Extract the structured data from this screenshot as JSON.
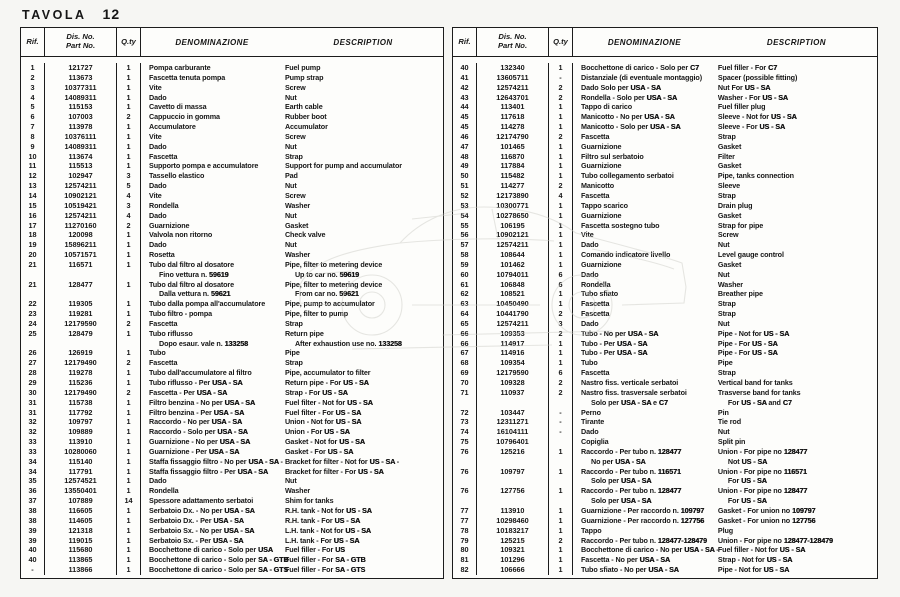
{
  "colors": {
    "paper": "#f6f6f3",
    "ink": "#161616"
  },
  "page": {
    "title": "TAVOLA",
    "number": "12"
  },
  "tables": {
    "columns": {
      "rif": "Rif.",
      "dis_no": "Dis. No.",
      "part_no": "Part No.",
      "qty": "Q.ty",
      "denominazione": "DENOMINAZIONE",
      "description": "DESCRIPTION"
    },
    "left": {
      "rows": [
        {
          "rif": "1",
          "part": "121727",
          "qty": "1",
          "den": "Pompa carburante",
          "desc": "Fuel pump"
        },
        {
          "rif": "2",
          "part": "113673",
          "qty": "1",
          "den": "Fascetta tenuta pompa",
          "desc": "Pump strap"
        },
        {
          "rif": "3",
          "part": "10377311",
          "qty": "1",
          "den": "Vite",
          "desc": "Screw"
        },
        {
          "rif": "4",
          "part": "14089311",
          "qty": "1",
          "den": "Dado",
          "desc": "Nut"
        },
        {
          "rif": "5",
          "part": "115153",
          "qty": "1",
          "den": "Cavetto di massa",
          "desc": "Earth cable"
        },
        {
          "rif": "6",
          "part": "107003",
          "qty": "2",
          "den": "Cappuccio in gomma",
          "desc": "Rubber boot"
        },
        {
          "rif": "7",
          "part": "113978",
          "qty": "1",
          "den": "Accumulatore",
          "desc": "Accumulator"
        },
        {
          "rif": "8",
          "part": "10376111",
          "qty": "1",
          "den": "Vite",
          "desc": "Screw"
        },
        {
          "rif": "9",
          "part": "14089311",
          "qty": "1",
          "den": "Dado",
          "desc": "Nut"
        },
        {
          "rif": "10",
          "part": "113674",
          "qty": "1",
          "den": "Fascetta",
          "desc": "Strap"
        },
        {
          "rif": "11",
          "part": "115513",
          "qty": "1",
          "den": "Supporto pompa e accumulatore",
          "desc": "Support for pump and accumulator"
        },
        {
          "rif": "12",
          "part": "102947",
          "qty": "3",
          "den": "Tassello elastico",
          "desc": "Pad"
        },
        {
          "rif": "13",
          "part": "12574211",
          "qty": "5",
          "den": "Dado",
          "desc": "Nut"
        },
        {
          "rif": "14",
          "part": "10902121",
          "qty": "4",
          "den": "Vite",
          "desc": "Screw"
        },
        {
          "rif": "15",
          "part": "10519421",
          "qty": "3",
          "den": "Rondella",
          "desc": "Washer"
        },
        {
          "rif": "16",
          "part": "12574211",
          "qty": "4",
          "den": "Dado",
          "desc": "Nut"
        },
        {
          "rif": "17",
          "part": "11270160",
          "qty": "2",
          "den": "Guarnizione",
          "desc": "Gasket"
        },
        {
          "rif": "18",
          "part": "120098",
          "qty": "1",
          "den": "Valvola non ritorno",
          "desc": "Check valve"
        },
        {
          "rif": "19",
          "part": "15896211",
          "qty": "1",
          "den": "Dado",
          "desc": "Nut"
        },
        {
          "rif": "20",
          "part": "10571571",
          "qty": "1",
          "den": "Rosetta",
          "desc": "Washer"
        },
        {
          "rif": "21",
          "part": "116571",
          "qty": "1",
          "den": "Tubo dal filtro al dosatore",
          "desc": "Pipe, filter to metering device"
        },
        {
          "cont": true,
          "den": "Fino vettura n. **59619**",
          "desc": "Up to car no. **59619**"
        },
        {
          "rif": "21",
          "part": "128477",
          "qty": "1",
          "den": "Tubo dal filtro al dosatore",
          "desc": "Pipe, filter to metering device"
        },
        {
          "cont": true,
          "den": "Dalla vettura n. **59621**",
          "desc": "From car no. **59621**"
        },
        {
          "rif": "22",
          "part": "119305",
          "qty": "1",
          "den": "Tubo dalla pompa all'accumulatore",
          "desc": "Pipe, pump to accumulator"
        },
        {
          "rif": "23",
          "part": "119281",
          "qty": "1",
          "den": "Tubo filtro - pompa",
          "desc": "Pipe, filter to pump"
        },
        {
          "rif": "24",
          "part": "12179590",
          "qty": "2",
          "den": "Fascetta",
          "desc": "Strap"
        },
        {
          "rif": "25",
          "part": "128479",
          "qty": "1",
          "den": "Tubo riflusso",
          "desc": "Return pipe"
        },
        {
          "cont": true,
          "den": "Dopo esaur. vale n. **133258**",
          "desc": "After exhaustion use no. **133258**"
        },
        {
          "rif": "26",
          "part": "126919",
          "qty": "1",
          "den": "Tubo",
          "desc": "Pipe"
        },
        {
          "rif": "27",
          "part": "12179490",
          "qty": "2",
          "den": "Fascetta",
          "desc": "Strap"
        },
        {
          "rif": "28",
          "part": "119278",
          "qty": "1",
          "den": "Tubo dall'accumulatore al filtro",
          "desc": "Pipe, accumulator to filter"
        },
        {
          "rif": "29",
          "part": "115236",
          "qty": "1",
          "den": "Tubo riflusso - Per **USA - SA**",
          "desc": "Return pipe - For **US - SA**"
        },
        {
          "rif": "30",
          "part": "12179490",
          "qty": "2",
          "den": "Fascetta - Per **USA - SA**",
          "desc": "Strap - For **US - SA**"
        },
        {
          "rif": "31",
          "part": "115738",
          "qty": "1",
          "den": "Filtro benzina - No per **USA - SA**",
          "desc": "Fuel filter - Not for **US - SA**"
        },
        {
          "rif": "31",
          "part": "117792",
          "qty": "1",
          "den": "Filtro benzina - Per **USA - SA**",
          "desc": "Fuel filter - For **US - SA**"
        },
        {
          "rif": "32",
          "part": "109797",
          "qty": "1",
          "den": "Raccordo - No per **USA - SA**",
          "desc": "Union - Not for **US - SA**"
        },
        {
          "rif": "32",
          "part": "109889",
          "qty": "1",
          "den": "Raccordo - Solo per **USA - SA**",
          "desc": "Union - For **US - SA**"
        },
        {
          "rif": "33",
          "part": "113910",
          "qty": "1",
          "den": "Guarnizione - No per **USA - SA**",
          "desc": "Gasket - Not for **US - SA**"
        },
        {
          "rif": "33",
          "part": "10280060",
          "qty": "1",
          "den": "Guarnizione - Per **USA - SA**",
          "desc": "Gasket - For **US - SA**"
        },
        {
          "rif": "34",
          "part": "115140",
          "qty": "1",
          "den": "Staffa fissaggio filtro - No per **USA - SA** -",
          "desc": "Bracket for filter - Not for **US - SA** -"
        },
        {
          "rif": "34",
          "part": "117791",
          "qty": "1",
          "den": "Staffa fissaggio filtro - Per **USA - SA**",
          "desc": "Bracket for filter - For **US - SA**"
        },
        {
          "rif": "35",
          "part": "12574521",
          "qty": "1",
          "den": "Dado",
          "desc": "Nut"
        },
        {
          "rif": "36",
          "part": "13550401",
          "qty": "1",
          "den": "Rondella",
          "desc": "Washer"
        },
        {
          "rif": "37",
          "part": "107889",
          "qty": "14",
          "den": "Spessore adattamento serbatoi",
          "desc": "Shim for tanks"
        },
        {
          "rif": "38",
          "part": "116605",
          "qty": "1",
          "den": "Serbatoio Dx. - No per **USA - SA**",
          "desc": "R.H. tank - Not for **US - SA**"
        },
        {
          "rif": "38",
          "part": "114605",
          "qty": "1",
          "den": "Serbatoio Dx. - Per **USA - SA**",
          "desc": "R.H. tank - For **US - SA**"
        },
        {
          "rif": "39",
          "part": "121318",
          "qty": "1",
          "den": "Serbatoio Sx. - No per **USA - SA**",
          "desc": "L.H. tank - Not for **US - SA**"
        },
        {
          "rif": "39",
          "part": "119015",
          "qty": "1",
          "den": "Serbatoio Sx. - Per **USA - SA**",
          "desc": "L.H. tank - For **US - SA**"
        },
        {
          "rif": "40",
          "part": "115680",
          "qty": "1",
          "den": "Bocchettone di carico - Solo per **USA**",
          "desc": "Fuel filler - For **US**"
        },
        {
          "rif": "40",
          "part": "113865",
          "qty": "1",
          "den": "Bocchettone di carico - Solo per **SA - GTB**",
          "desc": "Fuel filler - For **SA - GTB**"
        },
        {
          "rif": "-",
          "part": "113866",
          "qty": "1",
          "den": "Bocchettone di carico - Solo per **SA - GTS**",
          "desc": "Fuel filler - For **SA - GTS**"
        }
      ]
    },
    "right": {
      "rows": [
        {
          "rif": "40",
          "part": "132340",
          "qty": "1",
          "den": "Bocchettone di carico - Solo per **C7**",
          "desc": "Fuel filler - For **C7**"
        },
        {
          "rif": "41",
          "part": "13605711",
          "qty": "-",
          "den": "Distanziale (di eventuale montaggio)",
          "desc": "Spacer (possible fitting)"
        },
        {
          "rif": "42",
          "part": "12574211",
          "qty": "2",
          "den": "Dado  Solo per **USA - SA**",
          "desc": "Nut  For **US - SA**"
        },
        {
          "rif": "43",
          "part": "12643701",
          "qty": "2",
          "den": "Rondella - Solo per **USA - SA**",
          "desc": "Washer - For **US - SA**"
        },
        {
          "rif": "44",
          "part": "113401",
          "qty": "1",
          "den": "Tappo di carico",
          "desc": "Fuel filler plug"
        },
        {
          "rif": "45",
          "part": "117618",
          "qty": "1",
          "den": "Manicotto - No per **USA - SA**",
          "desc": "Sleeve - Not for **US - SA**"
        },
        {
          "rif": "45",
          "part": "114278",
          "qty": "1",
          "den": "Manicotto - Solo per **USA - SA**",
          "desc": "Sleeve - For **US - SA**"
        },
        {
          "rif": "46",
          "part": "12174790",
          "qty": "2",
          "den": "Fascetta",
          "desc": "Strap"
        },
        {
          "rif": "47",
          "part": "101465",
          "qty": "1",
          "den": "Guarnizione",
          "desc": "Gasket"
        },
        {
          "rif": "48",
          "part": "116870",
          "qty": "1",
          "den": "Filtro sul serbatoio",
          "desc": "Filter"
        },
        {
          "rif": "49",
          "part": "117884",
          "qty": "1",
          "den": "Guarnizione",
          "desc": "Gasket"
        },
        {
          "rif": "50",
          "part": "115482",
          "qty": "1",
          "den": "Tubo collegamento serbatoi",
          "desc": "Pipe, tanks connection"
        },
        {
          "rif": "51",
          "part": "114277",
          "qty": "2",
          "den": "Manicotto",
          "desc": "Sleeve"
        },
        {
          "rif": "52",
          "part": "12173890",
          "qty": "4",
          "den": "Fascetta",
          "desc": "Strap"
        },
        {
          "rif": "53",
          "part": "10300771",
          "qty": "1",
          "den": "Tappo scarico",
          "desc": "Drain plug"
        },
        {
          "rif": "54",
          "part": "10278650",
          "qty": "1",
          "den": "Guarnizione",
          "desc": "Gasket"
        },
        {
          "rif": "55",
          "part": "106195",
          "qty": "1",
          "den": "Fascetta sostegno tubo",
          "desc": "Strap for pipe"
        },
        {
          "rif": "56",
          "part": "10902121",
          "qty": "1",
          "den": "Vite",
          "desc": "Screw"
        },
        {
          "rif": "57",
          "part": "12574211",
          "qty": "1",
          "den": "Dado",
          "desc": "Nut"
        },
        {
          "rif": "58",
          "part": "108644",
          "qty": "1",
          "den": "Comando indicatore livello",
          "desc": "Level gauge control"
        },
        {
          "rif": "59",
          "part": "101462",
          "qty": "1",
          "den": "Guarnizione",
          "desc": "Gasket"
        },
        {
          "rif": "60",
          "part": "10794011",
          "qty": "6",
          "den": "Dado",
          "desc": "Nut"
        },
        {
          "rif": "61",
          "part": "106848",
          "qty": "6",
          "den": "Rondella",
          "desc": "Washer"
        },
        {
          "rif": "62",
          "part": "108521",
          "qty": "1",
          "den": "Tubo sfiato",
          "desc": "Breather pipe"
        },
        {
          "rif": "63",
          "part": "10450490",
          "qty": "1",
          "den": "Fascetta",
          "desc": "Strap"
        },
        {
          "rif": "64",
          "part": "10441790",
          "qty": "2",
          "den": "Fascetta",
          "desc": "Strap"
        },
        {
          "rif": "65",
          "part": "12574211",
          "qty": "3",
          "den": "Dado",
          "desc": "Nut"
        },
        {
          "rif": "66",
          "part": "109353",
          "qty": "2",
          "den": "Tubo - No per **USA - SA**",
          "desc": "Pipe - Not for **US - SA**"
        },
        {
          "rif": "66",
          "part": "114917",
          "qty": "1",
          "den": "Tubo - Per **USA - SA**",
          "desc": "Pipe - For **US - SA**"
        },
        {
          "rif": "67",
          "part": "114916",
          "qty": "1",
          "den": "Tubo - Per **USA - SA**",
          "desc": "Pipe - For **US - SA**"
        },
        {
          "rif": "68",
          "part": "109354",
          "qty": "1",
          "den": "Tubo",
          "desc": "Pipe"
        },
        {
          "rif": "69",
          "part": "12179590",
          "qty": "6",
          "den": "Fascetta",
          "desc": "Strap"
        },
        {
          "rif": "70",
          "part": "109328",
          "qty": "2",
          "den": "Nastro fiss. verticale serbatoi",
          "desc": "Vertical band for tanks"
        },
        {
          "rif": "71",
          "part": "110937",
          "qty": "2",
          "den": "Nastro fiss. trasversale serbatoi",
          "desc": "Trasverse band for tanks"
        },
        {
          "cont": true,
          "den": "Solo per **USA - SA** e **C7**",
          "desc": "For **US - SA** and **C7**"
        },
        {
          "rif": "72",
          "part": "103447",
          "qty": "-",
          "den": "Perno",
          "desc": "Pin"
        },
        {
          "rif": "73",
          "part": "12311271",
          "qty": "-",
          "den": "Tirante",
          "desc": "Tie rod"
        },
        {
          "rif": "74",
          "part": "16104111",
          "qty": "-",
          "den": "Dado",
          "desc": "Nut"
        },
        {
          "rif": "75",
          "part": "10796401",
          "qty": "",
          "den": "Copiglia",
          "desc": "Split pin"
        },
        {
          "rif": "76",
          "part": "125216",
          "qty": "1",
          "den": "Raccordo - Per tubo n. **128477**",
          "desc": "Union - For pipe no **128477**"
        },
        {
          "cont": true,
          "den": "No per **USA - SA**",
          "desc": "Not **US - SA**"
        },
        {
          "rif": "76",
          "part": "109797",
          "qty": "1",
          "den": "Raccordo - Per tubo n. **116571**",
          "desc": "Union - For pipe no **116571**"
        },
        {
          "cont": true,
          "den": "Solo per **USA - SA**",
          "desc": "For **US - SA**"
        },
        {
          "rif": "76",
          "part": "127756",
          "qty": "1",
          "den": "Raccordo - Per tubo n. **128477**",
          "desc": "Union - For pipe no **128477**"
        },
        {
          "cont": true,
          "den": "Solo per **USA - SA**",
          "desc": "For **US - SA**"
        },
        {
          "rif": "77",
          "part": "113910",
          "qty": "1",
          "den": "Guarnizione - Per raccordo n. **109797**",
          "desc": "Gasket - For union no **109797**"
        },
        {
          "rif": "77",
          "part": "10298460",
          "qty": "1",
          "den": "Guarnizione - Per raccordo n. **127756**",
          "desc": "Gasket - For union no **127756**"
        },
        {
          "rif": "78",
          "part": "10183217",
          "qty": "1",
          "den": "Tappo",
          "desc": "Plug"
        },
        {
          "rif": "79",
          "part": "125215",
          "qty": "2",
          "den": "Raccordo - Per tubo n. **128477-128479**",
          "desc": "Union - For pipe no **128477-128479**"
        },
        {
          "rif": "80",
          "part": "109321",
          "qty": "1",
          "den": "Bocchettone di carico - No per **USA - SA** -",
          "desc": "Fuel filler - Not for **US - SA**"
        },
        {
          "rif": "81",
          "part": "101296",
          "qty": "1",
          "den": "Fascetta - No per **USA - SA**",
          "desc": "Strap - Not for **US - SA**"
        },
        {
          "rif": "82",
          "part": "106666",
          "qty": "1",
          "den": "Tubo sfiato - No per **USA - SA**",
          "desc": "Pipe - Not for **US - SA**"
        }
      ]
    }
  }
}
